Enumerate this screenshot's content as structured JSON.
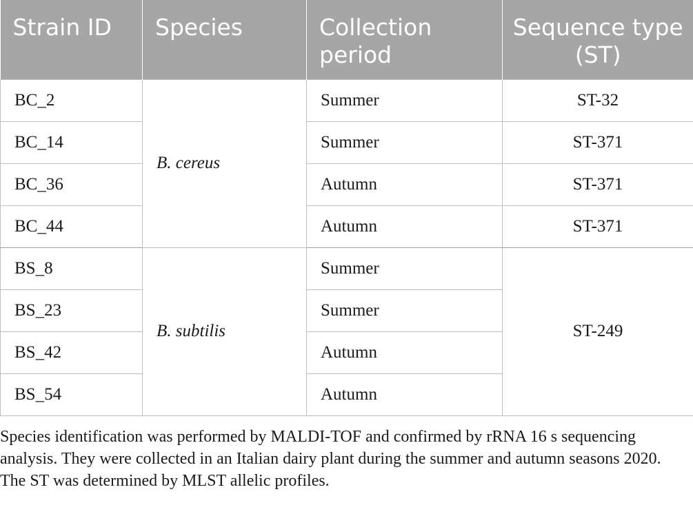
{
  "table": {
    "headers": {
      "strain_id": "Strain ID",
      "species": "Species",
      "collection_period": "Collection period",
      "sequence_type": "Sequence type (ST)"
    },
    "groups": [
      {
        "species": "B. cereus",
        "rows": [
          {
            "strain_id": "BC_2",
            "period": "Summer",
            "st": "ST-32"
          },
          {
            "strain_id": "BC_14",
            "period": "Summer",
            "st": "ST-371"
          },
          {
            "strain_id": "BC_36",
            "period": "Autumn",
            "st": "ST-371"
          },
          {
            "strain_id": "BC_44",
            "period": "Autumn",
            "st": "ST-371"
          }
        ]
      },
      {
        "species": "B. subtilis",
        "shared_st": "ST-249",
        "rows": [
          {
            "strain_id": "BS_8",
            "period": "Summer"
          },
          {
            "strain_id": "BS_23",
            "period": "Summer"
          },
          {
            "strain_id": "BS_42",
            "period": "Autumn"
          },
          {
            "strain_id": "BS_54",
            "period": "Autumn"
          }
        ]
      }
    ]
  },
  "footnote": "Species identification was performed by MALDI-TOF and confirmed by rRNA 16 s sequencing analysis. They were collected in an Italian dairy plant during the summer and autumn seasons 2020. The ST was determined by MLST allelic profiles.",
  "colors": {
    "header_background": "#a6a6a6",
    "header_text": "#ffffff",
    "grid_lines": "#bfbfbf",
    "body_text": "#1a1a1a"
  }
}
